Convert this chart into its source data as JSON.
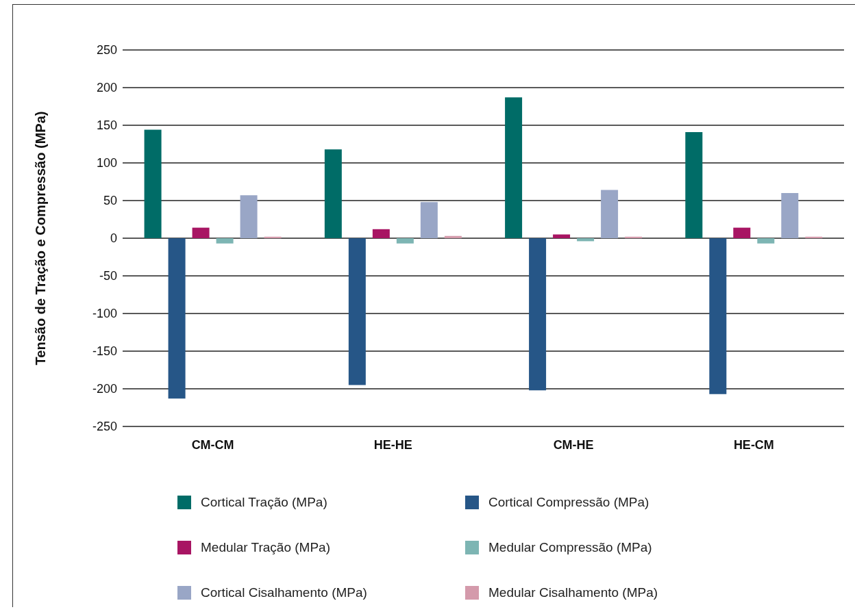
{
  "chart_data": {
    "type": "bar",
    "ylabel": "Tensão de Tração e Compressão (MPa)",
    "categories": [
      "CM-CM",
      "HE-HE",
      "CM-HE",
      "HE-CM"
    ],
    "series": [
      {
        "name": "Cortical Tração (MPa)",
        "color": "#006c67",
        "values": [
          144,
          118,
          187,
          141
        ]
      },
      {
        "name": "Cortical Compressão (MPa)",
        "color": "#265687",
        "values": [
          -213,
          -195,
          -202,
          -207
        ]
      },
      {
        "name": "Medular Tração (MPa)",
        "color": "#a81563",
        "values": [
          14,
          12,
          5,
          14
        ]
      },
      {
        "name": "Medular Compressão (MPa)",
        "color": "#7db5b3",
        "values": [
          -7,
          -7,
          -4,
          -7
        ]
      },
      {
        "name": "Cortical Cisalhamento (MPa)",
        "color": "#99a6c6",
        "values": [
          57,
          48,
          64,
          60
        ]
      },
      {
        "name": "Medular Cisalhamento (MPa)",
        "color": "#d49aab",
        "values": [
          2,
          3,
          2,
          2
        ]
      }
    ],
    "ylim": [
      -250,
      250
    ],
    "yticks": [
      -250,
      -200,
      -150,
      -100,
      -50,
      0,
      50,
      100,
      150,
      200,
      250
    ],
    "grid": "y",
    "legend": "bottom"
  }
}
